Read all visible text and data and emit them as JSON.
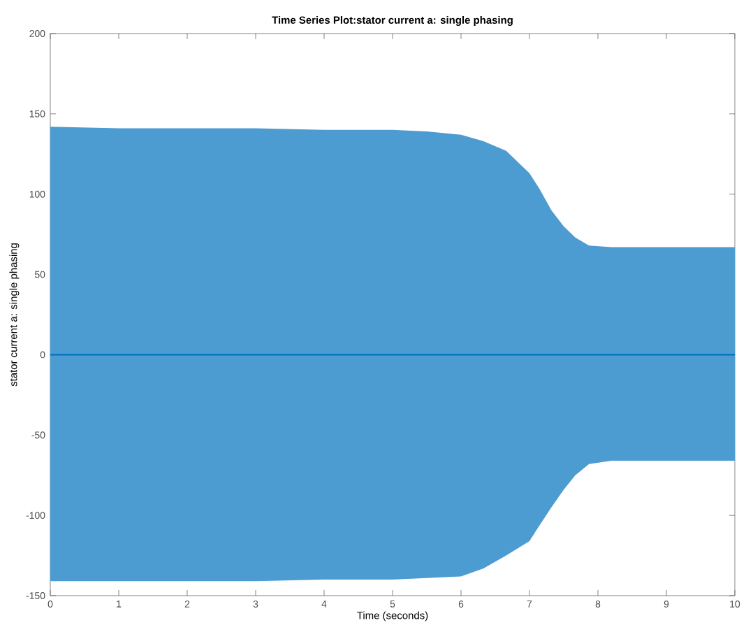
{
  "chart_data": {
    "type": "line",
    "title": "Time Series Plot:stator current a: single phasing",
    "xlabel": "Time (seconds)",
    "ylabel": "stator current a: single phasing",
    "series": [
      {
        "color": "#0072bd",
        "x": [
          0,
          1,
          2,
          3,
          4,
          4.6,
          5,
          5.5,
          6,
          6.33,
          6.66,
          7,
          7.15,
          7.32,
          7.5,
          7.67,
          7.87,
          8.2,
          9,
          10
        ],
        "values": [
          0,
          0,
          0,
          0,
          0,
          0,
          0,
          0,
          0,
          0,
          0,
          0,
          0,
          0,
          0,
          0,
          0,
          0,
          0,
          0
        ],
        "upper": [
          142,
          141,
          141,
          141,
          140,
          140,
          140,
          139,
          137,
          133,
          127,
          113,
          103,
          90,
          80,
          73,
          68,
          67,
          67,
          67
        ],
        "lower": [
          -141,
          -141,
          -141,
          -141,
          -140,
          -140,
          -140,
          -139,
          -138,
          -133,
          -125,
          -116,
          -106,
          -95,
          -84,
          -75,
          -68,
          -66,
          -66,
          -66
        ]
      }
    ],
    "xlim": [
      0,
      10
    ],
    "ylim": [
      -150,
      200
    ],
    "xticks": [
      0,
      1,
      2,
      3,
      4,
      5,
      6,
      7,
      8,
      9,
      10
    ],
    "yticks": [
      -150,
      -100,
      -50,
      0,
      50,
      100,
      150,
      200
    ],
    "grid": false
  }
}
